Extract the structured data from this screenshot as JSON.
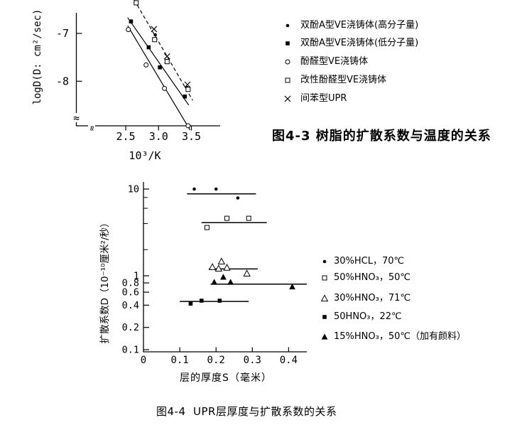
{
  "page": {
    "background": "#ffffff",
    "ink_color": "#000000"
  },
  "figure1": {
    "caption": "图4-3 树脂的扩散系数与温度的关系"
  },
  "figure2": {
    "caption": "图4-4  UPR层厚度与扩散系数的关系"
  },
  "chart_data": [
    {
      "type": "scatter",
      "title": "图4-3 树脂的扩散系数与温度的关系",
      "xlabel": "10³/K",
      "ylabel": "logD(D: cm²/sec)",
      "xlim": [
        2.3,
        3.7
      ],
      "ylim": [
        -9.1,
        -6.3
      ],
      "axis_breaks": true,
      "grid": false,
      "legend_position": "right-outside",
      "x_ticks": {
        "values": [
          2.5,
          3.0,
          3.5
        ],
        "labels": [
          "2.5",
          "3.0",
          "3.5"
        ]
      },
      "y_ticks": {
        "values": [
          -7,
          -8
        ],
        "labels": [
          "-7",
          "-8"
        ]
      },
      "series": [
        {
          "name": "双酚A型VE浇铸体(高分子量)",
          "marker": "dot-filled",
          "points": [
            [
              2.95,
              -7.03
            ],
            [
              3.12,
              -7.57
            ],
            [
              3.43,
              -8.13
            ]
          ]
        },
        {
          "name": "双酚A型VE浇铸体(低分子量)",
          "marker": "square-filled",
          "line": "solid",
          "trend": [
            [
              2.53,
              -6.67
            ],
            [
              3.46,
              -8.5
            ]
          ],
          "points": [
            [
              2.58,
              -6.75
            ],
            [
              2.85,
              -7.29
            ],
            [
              3.02,
              -7.71
            ],
            [
              3.4,
              -8.32
            ]
          ]
        },
        {
          "name": "酚醛型VE浇铸体",
          "marker": "circle-open",
          "line": "solid",
          "trend": [
            [
              2.53,
              -6.84
            ],
            [
              3.48,
              -9.02
            ]
          ],
          "points": [
            [
              2.54,
              -6.92
            ],
            [
              2.81,
              -7.66
            ],
            [
              3.09,
              -8.15
            ],
            [
              3.45,
              -8.93
            ]
          ]
        },
        {
          "name": "改性酚醛型VE浇铸体",
          "marker": "square-open",
          "line": "dashed",
          "trend": [
            [
              2.63,
              -6.3
            ],
            [
              3.52,
              -8.4
            ]
          ],
          "points": [
            [
              2.66,
              -6.36
            ],
            [
              2.94,
              -7.13
            ],
            [
              3.13,
              -7.59
            ],
            [
              3.45,
              -8.17
            ]
          ]
        },
        {
          "name": "间苯型UPR",
          "marker": "x-mark",
          "points": [
            [
              2.93,
              -6.91
            ],
            [
              3.13,
              -7.48
            ],
            [
              3.44,
              -8.07
            ]
          ]
        }
      ]
    },
    {
      "type": "scatter",
      "title": "图4-4  UPR层厚度与扩散系数的关系",
      "xlabel": "层的厚度S（毫米）",
      "ylabel": "扩散系数D（10⁻¹⁰厘米²/秒）",
      "y_scale": "log",
      "xlim": [
        0,
        0.45
      ],
      "ylim": [
        0.1,
        12
      ],
      "grid": false,
      "legend_position": "right-outside",
      "x_ticks": {
        "values": [
          0,
          0.1,
          0.2,
          0.3,
          0.4
        ],
        "labels": [
          "0",
          "0.1",
          "0.2",
          "0.3",
          "0.4"
        ]
      },
      "y_ticks": {
        "values": [
          10,
          1,
          0.8,
          0.6,
          0.4,
          0.2,
          0.1
        ],
        "labels": [
          "10",
          "1",
          "0.8",
          "0.6",
          "0.4",
          "0.2",
          "0.1"
        ],
        "minor": [
          8,
          6,
          4,
          2
        ]
      },
      "series": [
        {
          "name": "30%HCL，70℃",
          "marker": "dot-filled",
          "points": [
            [
              0.14,
              10.0
            ],
            [
              0.2,
              10.0
            ],
            [
              0.26,
              7.9
            ]
          ],
          "mean_line": {
            "y": 8.8,
            "x1": 0.12,
            "x2": 0.31
          }
        },
        {
          "name": "50%HNO₃，50℃",
          "marker": "square-open",
          "points": [
            [
              0.175,
              3.6
            ],
            [
              0.23,
              4.6
            ],
            [
              0.29,
              4.6
            ]
          ],
          "mean_line": {
            "y": 4.1,
            "x1": 0.16,
            "x2": 0.34
          }
        },
        {
          "name": "30%HNO₃，71℃",
          "marker": "triangle-open",
          "points": [
            [
              0.19,
              1.26
            ],
            [
              0.207,
              1.21
            ],
            [
              0.215,
              1.46
            ],
            [
              0.23,
              1.24
            ],
            [
              0.285,
              1.06
            ]
          ],
          "mean_line": {
            "y": 1.2,
            "x1": 0.18,
            "x2": 0.315
          }
        },
        {
          "name": "50HNO₃，22℃",
          "marker": "square-filled",
          "points": [
            [
              0.13,
              0.42
            ],
            [
              0.16,
              0.46
            ],
            [
              0.21,
              0.46
            ]
          ],
          "mean_line": {
            "y": 0.45,
            "x1": 0.1,
            "x2": 0.29
          }
        },
        {
          "name": "15%HNO₃，50℃（加有颜料）",
          "marker": "triangle-filled",
          "points": [
            [
              0.195,
              0.82
            ],
            [
              0.22,
              0.96
            ],
            [
              0.24,
              0.82
            ],
            [
              0.41,
              0.71
            ]
          ],
          "mean_line": {
            "y": 0.77,
            "x1": 0.185,
            "x2": 0.45
          }
        }
      ]
    }
  ]
}
